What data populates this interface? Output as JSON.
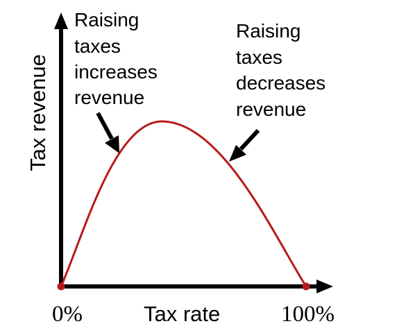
{
  "colors": {
    "curve": "#b8191a",
    "axis": "#000000",
    "background": "#ffffff"
  },
  "axes": {
    "x_label": "Tax rate",
    "y_label": "Tax revenue",
    "x_tick_start": "0%",
    "x_tick_end": "100%"
  },
  "annotations": {
    "left": [
      "Raising",
      "taxes",
      "increases",
      "revenue"
    ],
    "right": [
      "Raising",
      "taxes",
      "decreases",
      "revenue"
    ]
  },
  "icons": {
    "left_arrow": "arrow-down-right-icon",
    "right_arrow": "arrow-down-left-icon",
    "x_axis_arrow": "arrow-right-icon",
    "y_axis_arrow": "arrow-up-icon"
  }
}
